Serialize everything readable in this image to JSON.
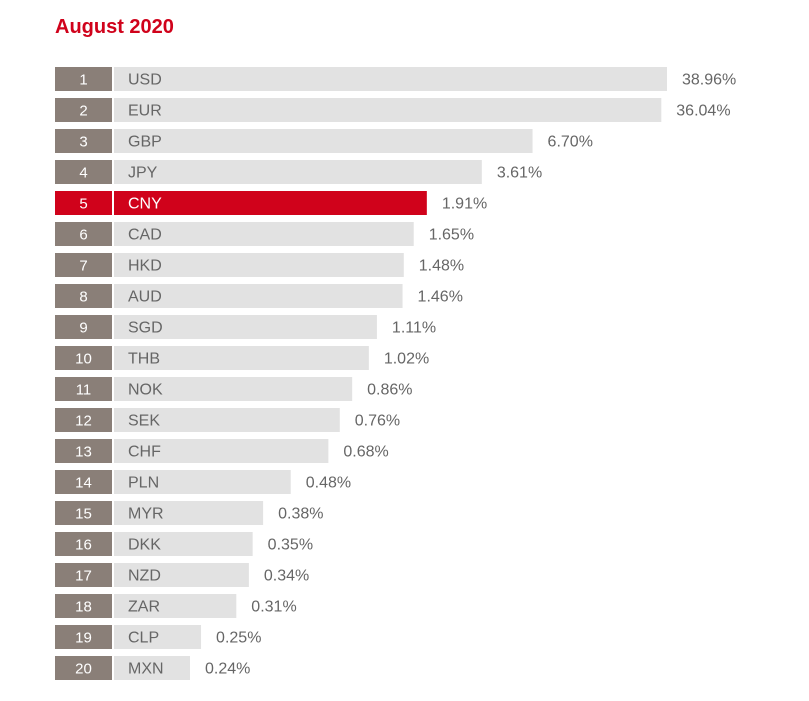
{
  "title": "August 2020",
  "colors": {
    "title": "#d0021b",
    "rank_box": "#8a7f78",
    "bar": "#e2e2e2",
    "highlight": "#d0021b",
    "text": "#666666"
  },
  "chart_data": {
    "type": "bar",
    "orientation": "horizontal",
    "title": "August 2020",
    "highlight_category": "CNY",
    "ranks": [
      "1",
      "2",
      "3",
      "4",
      "5",
      "6",
      "7",
      "8",
      "9",
      "10",
      "11",
      "12",
      "13",
      "14",
      "15",
      "16",
      "17",
      "18",
      "19",
      "20"
    ],
    "categories": [
      "USD",
      "EUR",
      "GBP",
      "JPY",
      "CNY",
      "CAD",
      "HKD",
      "AUD",
      "SGD",
      "THB",
      "NOK",
      "SEK",
      "CHF",
      "PLN",
      "MYR",
      "DKK",
      "NZD",
      "ZAR",
      "CLP",
      "MXN"
    ],
    "values": [
      38.96,
      36.04,
      6.7,
      3.61,
      1.91,
      1.65,
      1.48,
      1.46,
      1.11,
      1.02,
      0.86,
      0.76,
      0.68,
      0.48,
      0.38,
      0.35,
      0.34,
      0.31,
      0.25,
      0.24
    ],
    "value_labels": [
      "38.96%",
      "36.04%",
      "6.70%",
      "3.61%",
      "1.91%",
      "1.65%",
      "1.48%",
      "1.46%",
      "1.11%",
      "1.02%",
      "0.86%",
      "0.76%",
      "0.68%",
      "0.48%",
      "0.38%",
      "0.35%",
      "0.34%",
      "0.31%",
      "0.25%",
      "0.24%"
    ]
  }
}
